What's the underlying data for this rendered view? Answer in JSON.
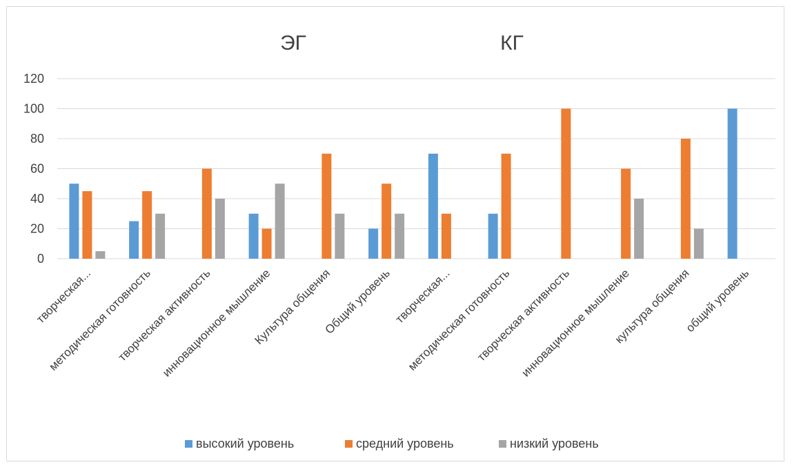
{
  "chart_data": {
    "type": "bar",
    "group_titles": [
      "ЭГ",
      "КГ"
    ],
    "categories": [
      "творческая...",
      "методическая готовность",
      "творческая активность",
      "инновационное мышление",
      "Культура общения",
      "Общий уровень",
      "творческая...",
      "методическая готовность",
      "творческая  активность",
      "инновационное мышление",
      "культура общения",
      "общий уровень"
    ],
    "series": [
      {
        "name": "высокий уровень",
        "color": "#5b9bd5",
        "values": [
          50,
          25,
          0,
          30,
          0,
          20,
          70,
          30,
          0,
          0,
          0,
          100
        ]
      },
      {
        "name": "средний уровень",
        "color": "#ed7d31",
        "values": [
          45,
          45,
          60,
          20,
          70,
          50,
          30,
          70,
          100,
          60,
          80,
          0
        ]
      },
      {
        "name": "низкий уровень",
        "color": "#a5a5a5",
        "values": [
          5,
          30,
          40,
          50,
          30,
          30,
          0,
          0,
          0,
          40,
          20,
          0
        ]
      }
    ],
    "y_ticks": [
      "0",
      "20",
      "40",
      "60",
      "80",
      "100",
      "120"
    ],
    "ylim": [
      0,
      120
    ],
    "grid": true,
    "legend_position": "bottom"
  }
}
